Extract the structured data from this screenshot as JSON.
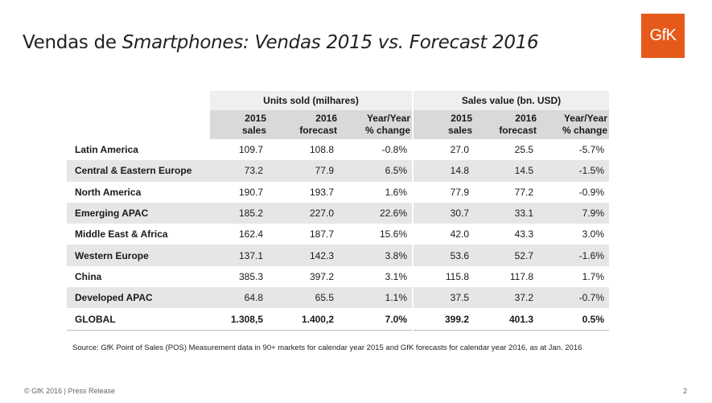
{
  "title": {
    "part1": "Vendas de ",
    "part2": "Smartphones:",
    "part3": "Vendas 2015 vs. Forecast 2016"
  },
  "logo": "GfK",
  "table": {
    "group1": "Units sold (milhares)",
    "group2": "Sales value (bn. USD)",
    "subheaders": [
      [
        "2015",
        "sales"
      ],
      [
        "2016",
        "forecast"
      ],
      [
        "Year/Year",
        "% change"
      ],
      [
        "2015",
        "sales"
      ],
      [
        "2016",
        "forecast"
      ],
      [
        "Year/Year",
        "% change"
      ]
    ],
    "rows": [
      [
        "Latin America",
        "109.7",
        "108.8",
        "-0.8%",
        "27.0",
        "25.5",
        "-5.7%"
      ],
      [
        "Central & Eastern Europe",
        "73.2",
        "77.9",
        "6.5%",
        "14.8",
        "14.5",
        "-1.5%"
      ],
      [
        "North America",
        "190.7",
        "193.7",
        "1.6%",
        "77.9",
        "77.2",
        "-0.9%"
      ],
      [
        "Emerging APAC",
        "185.2",
        "227.0",
        "22.6%",
        "30.7",
        "33.1",
        "7.9%"
      ],
      [
        "Middle East & Africa",
        "162.4",
        "187.7",
        "15.6%",
        "42.0",
        "43.3",
        "3.0%"
      ],
      [
        "Western Europe",
        "137.1",
        "142.3",
        "3.8%",
        "53.6",
        "52.7",
        "-1.6%"
      ],
      [
        "China",
        "385.3",
        "397.2",
        "3.1%",
        "115.8",
        "117.8",
        "1.7%"
      ],
      [
        "Developed APAC",
        "64.8",
        "65.5",
        "1.1%",
        "37.5",
        "37.2",
        "-0.7%"
      ],
      [
        "GLOBAL",
        "1.308,5",
        "1.400,2",
        "7.0%",
        "399.2",
        "401.3",
        "0.5%"
      ]
    ]
  },
  "source": "Source:  GfK Point of Sales (POS) Measurement  data in 90+ markets for calendar year 2015 and GfK forecasts for calendar year 2016, as at Jan. 2016",
  "footer": "© GfK 2016 | Press Release",
  "page_number": "2",
  "colors": {
    "logo_bg": "#e55a1b",
    "alt_row": "#e6e6e6",
    "subheader_bg": "#d9d9d9"
  }
}
